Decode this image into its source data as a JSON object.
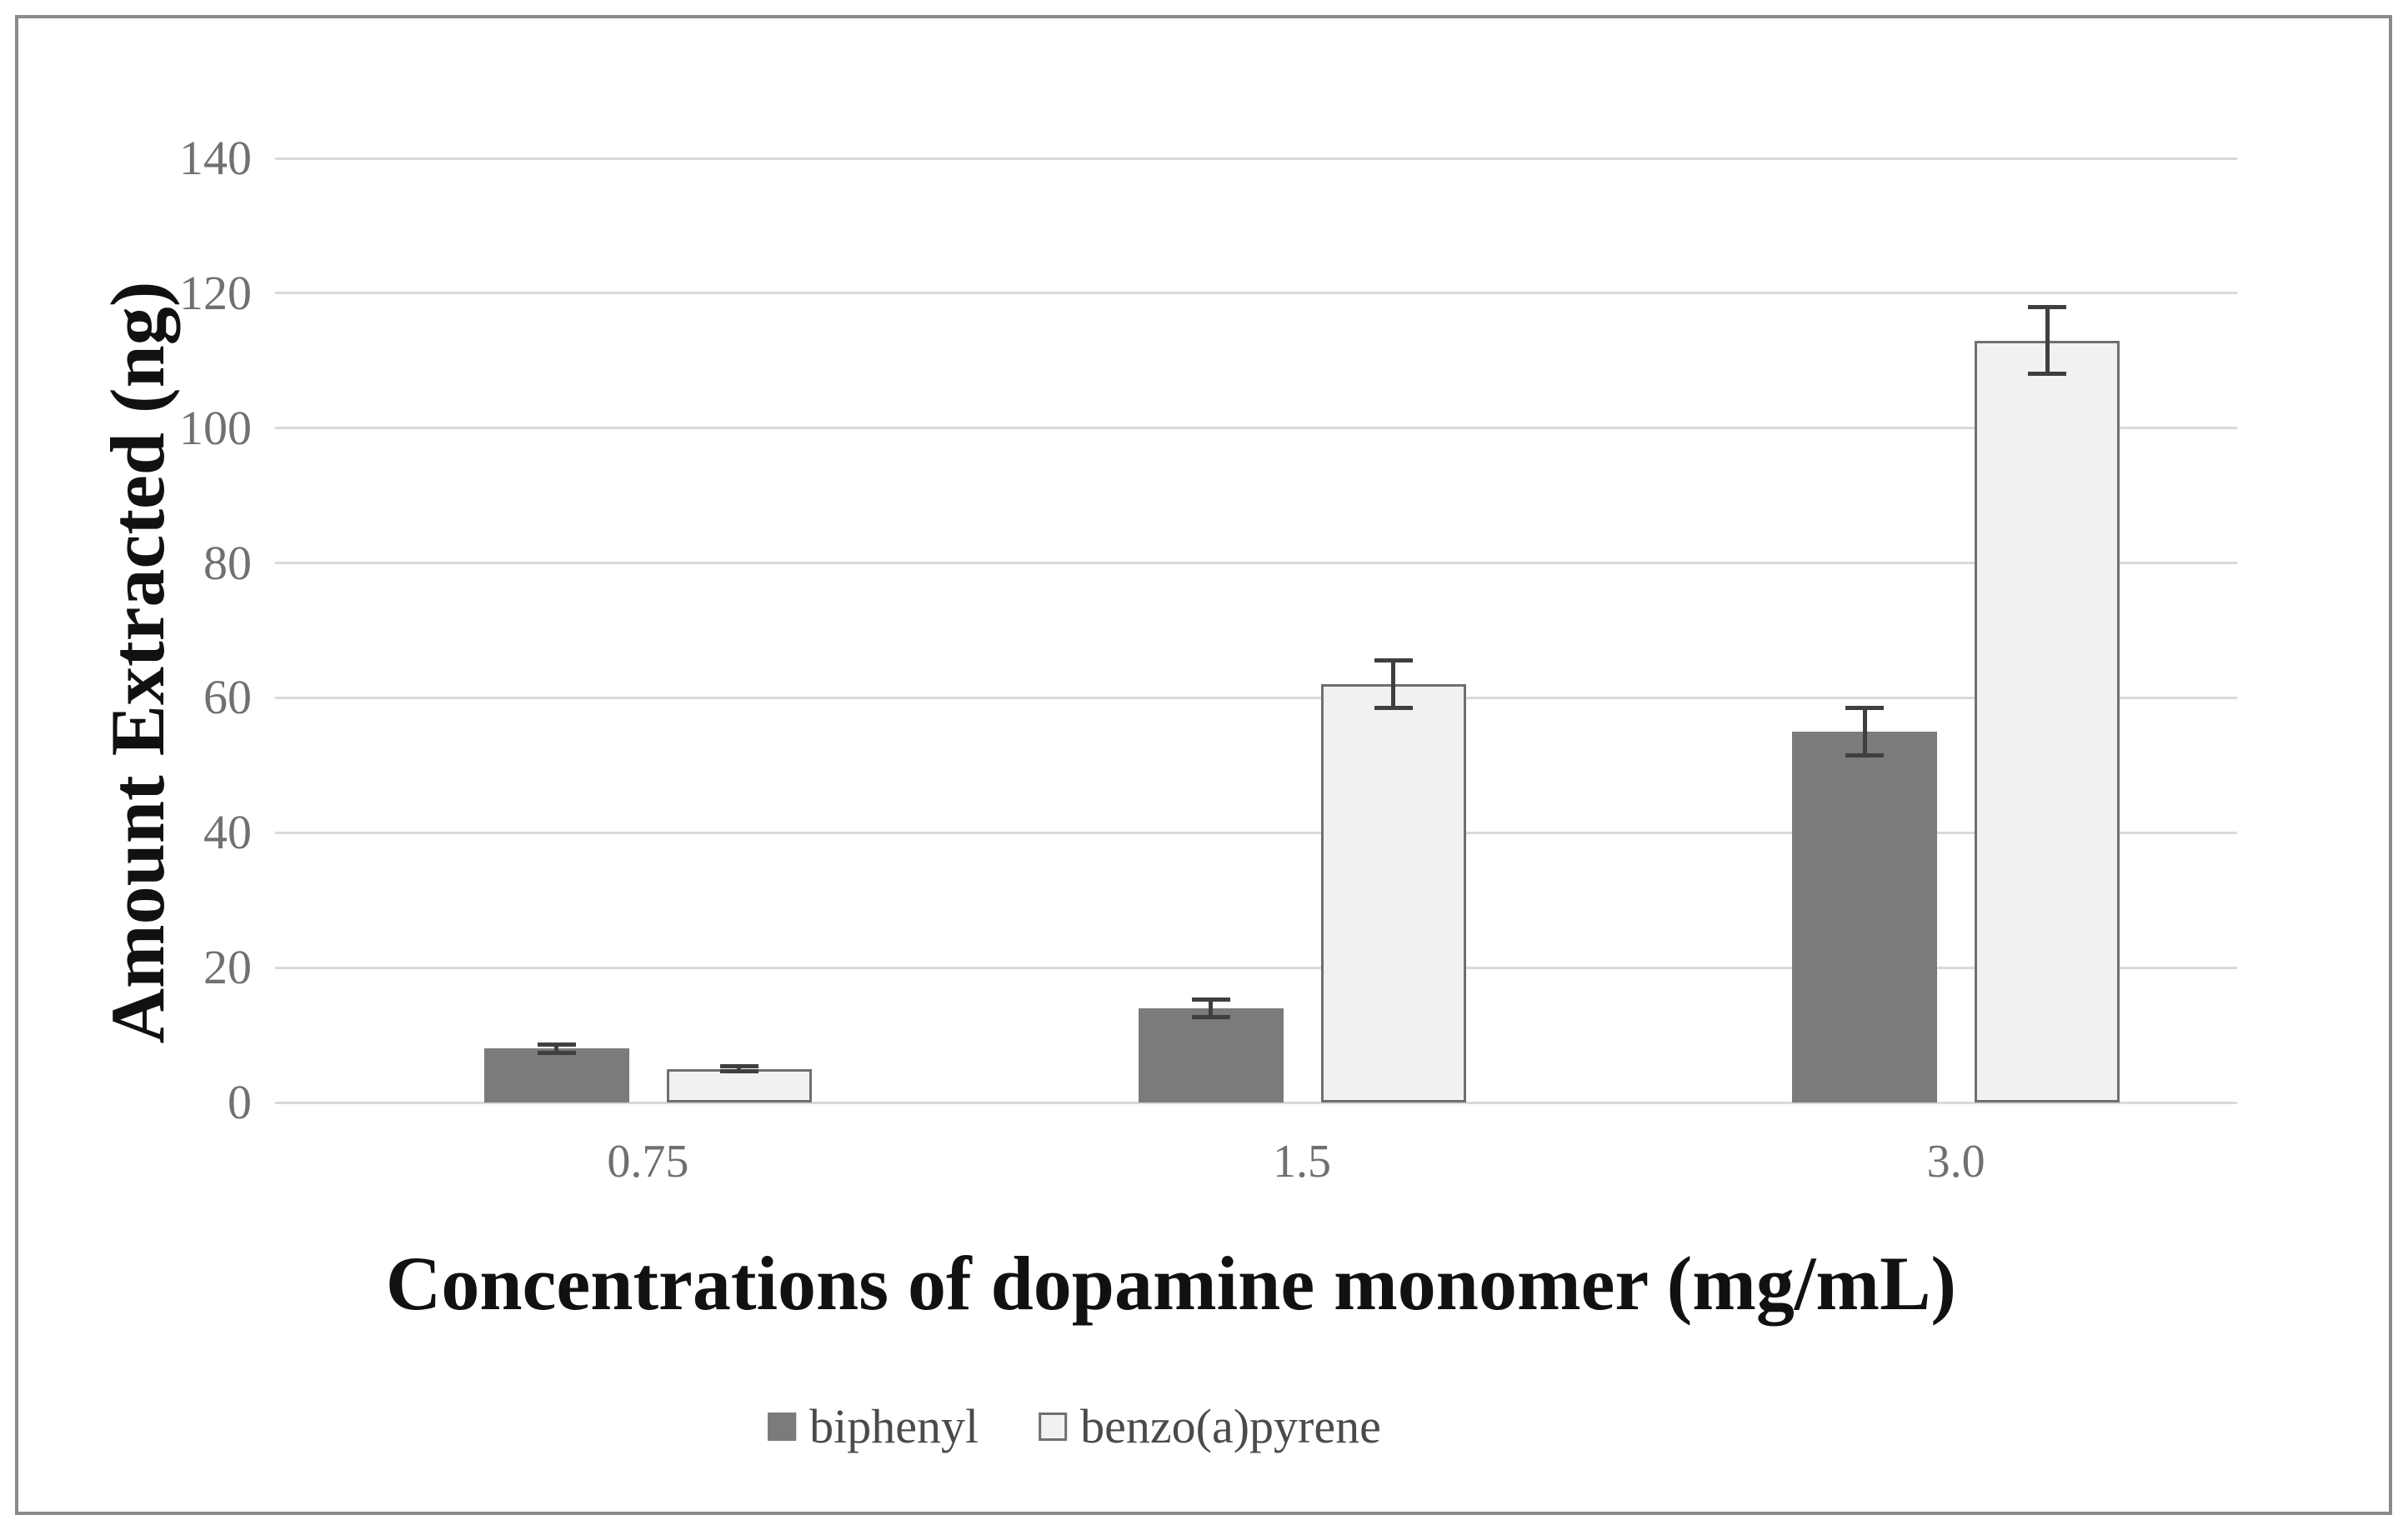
{
  "figure": {
    "background": "#ffffff",
    "frame_border_color": "#8a8a8a"
  },
  "chart_data": {
    "type": "bar",
    "title": "",
    "xlabel": "Concentrations of dopamine monomer (mg/mL)",
    "ylabel": "Amount Extracted (ng)",
    "categories": [
      "0.75",
      "1.5",
      "3.0"
    ],
    "series": [
      {
        "name": "biphenyl",
        "values": [
          8,
          14,
          55
        ],
        "errors": [
          0.6,
          1.3,
          3.5
        ],
        "fill": "#7b7b7b",
        "stroke": "#7b7b7b",
        "stroke_width": 0
      },
      {
        "name": "benzo(a)pyrene",
        "values": [
          5,
          62,
          113
        ],
        "errors": [
          0.4,
          3.5,
          5
        ],
        "fill": "#f1f1f1",
        "stroke": "#6f6f6f",
        "stroke_width": 3
      }
    ],
    "ylim": [
      0,
      140
    ],
    "yticks": [
      0,
      20,
      40,
      60,
      80,
      100,
      120,
      140
    ],
    "grid": "horizontal",
    "legend_position": "bottom-center",
    "error_bars": "vertical, capped, both directions",
    "colors": {
      "gridline": "#d9d9d9",
      "axis_line": "#d9d9d9",
      "tick_label": "#707070",
      "axis_title": "#111111",
      "legend_text": "#4a4a4a",
      "error_bar": "#3f3f3f"
    }
  }
}
